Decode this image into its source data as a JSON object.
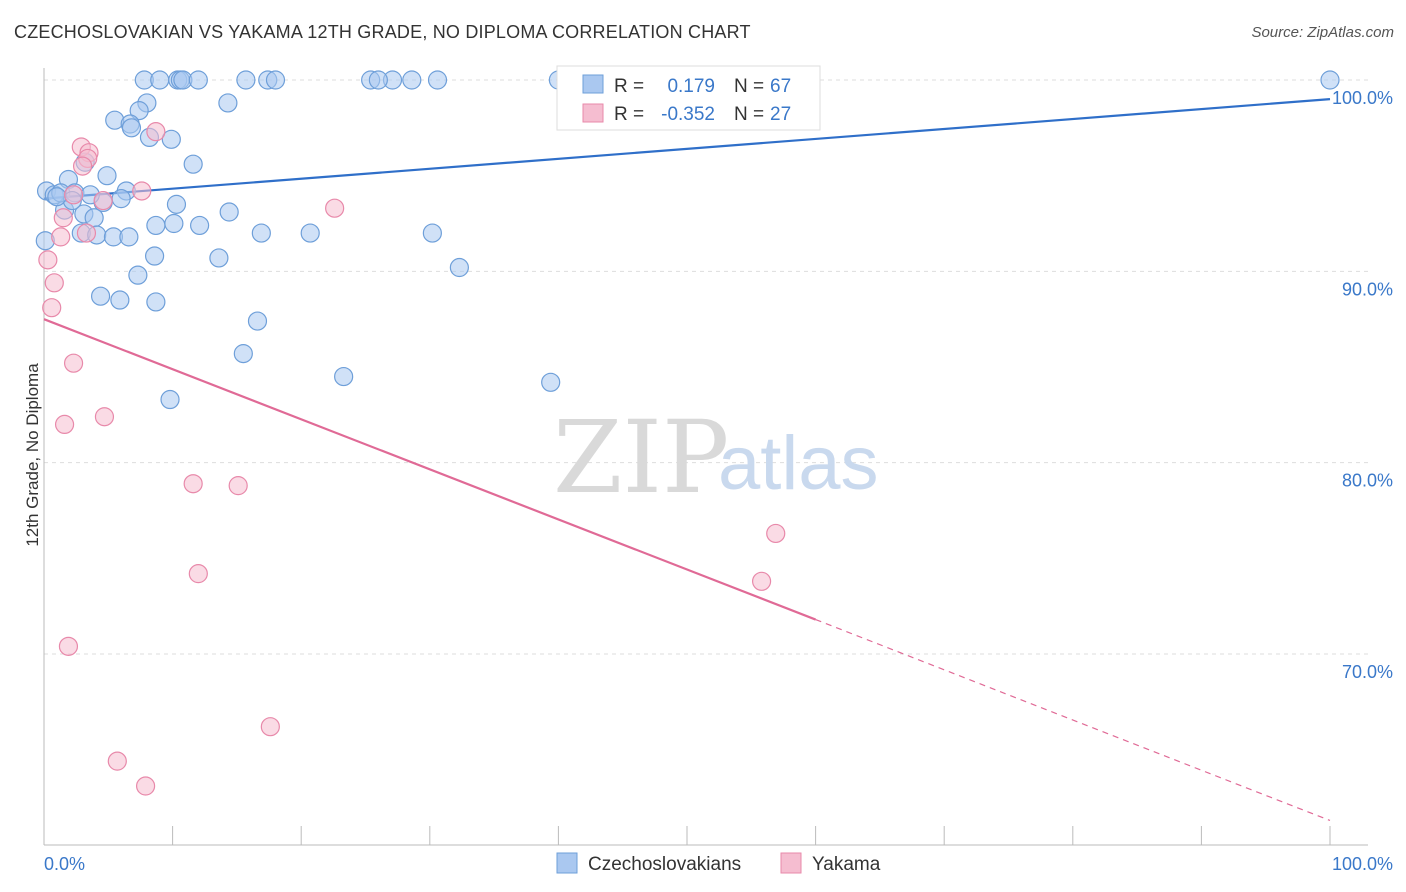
{
  "title": "CZECHOSLOVAKIAN VS YAKAMA 12TH GRADE, NO DIPLOMA CORRELATION CHART",
  "source": "Source: ZipAtlas.com",
  "watermark": {
    "zip": "ZIP",
    "atlas": "atlas"
  },
  "colors": {
    "blue_fill": "#aac8f0",
    "blue_stroke": "#6e9fd9",
    "blue_line": "#2f6fc9",
    "pink_fill": "#f5bdd0",
    "pink_stroke": "#e889aa",
    "pink_line": "#e06a96",
    "accent_text": "#3a78c9",
    "grid": "#dddddd"
  },
  "legend": {
    "rows": [
      {
        "r_label": "R =",
        "r_value": "0.179",
        "n_label": "N =",
        "n_value": "67",
        "color": "blue"
      },
      {
        "r_label": "R =",
        "r_value": "-0.352",
        "n_label": "N =",
        "n_value": "27",
        "color": "pink"
      }
    ]
  },
  "bottom_legend": [
    "Czechoslovakians",
    "Yakama"
  ],
  "chart_data": {
    "type": "scatter",
    "title": "CZECHOSLOVAKIAN VS YAKAMA 12TH GRADE, NO DIPLOMA CORRELATION CHART",
    "xlabel": "",
    "ylabel": "12th Grade, No Diploma",
    "x_tick_labels": [
      "0.0%",
      "100.0%"
    ],
    "y_tick_labels": [
      "100.0%",
      "90.0%",
      "80.0%",
      "70.0%"
    ],
    "y_ticks": [
      100,
      90,
      80,
      70
    ],
    "xlim": [
      0,
      100
    ],
    "ylim": [
      60.4,
      102
    ],
    "grid": true,
    "legend_position": "top-center",
    "series": [
      {
        "name": "Czechoslovakians",
        "color": "blue",
        "r": 0.179,
        "n": 67,
        "trend": {
          "x": [
            0,
            100
          ],
          "y": [
            93.8,
            99.0
          ]
        },
        "points": [
          [
            7.8,
            100
          ],
          [
            9.0,
            100
          ],
          [
            10.4,
            100
          ],
          [
            10.6,
            100
          ],
          [
            10.8,
            100
          ],
          [
            15.7,
            100
          ],
          [
            17.4,
            100
          ],
          [
            25.4,
            100
          ],
          [
            27.1,
            100
          ],
          [
            28.6,
            100
          ],
          [
            30.6,
            100
          ],
          [
            100,
            100
          ],
          [
            8.0,
            98.8
          ],
          [
            14.3,
            98.8
          ],
          [
            7.4,
            98.4
          ],
          [
            5.5,
            97.9
          ],
          [
            6.7,
            97.7
          ],
          [
            6.8,
            97.5
          ],
          [
            8.2,
            97.0
          ],
          [
            9.9,
            96.9
          ],
          [
            3.2,
            95.7
          ],
          [
            11.6,
            95.6
          ],
          [
            4.9,
            95.0
          ],
          [
            1.9,
            94.8
          ],
          [
            0.2,
            94.2
          ],
          [
            0.8,
            94.0
          ],
          [
            1.3,
            94.1
          ],
          [
            2.4,
            94.1
          ],
          [
            6.4,
            94.2
          ],
          [
            6.0,
            93.8
          ],
          [
            4.6,
            93.6
          ],
          [
            10.3,
            93.5
          ],
          [
            1.6,
            93.2
          ],
          [
            3.1,
            93.0
          ],
          [
            3.9,
            92.8
          ],
          [
            14.4,
            93.1
          ],
          [
            10.1,
            92.5
          ],
          [
            8.7,
            92.4
          ],
          [
            12.1,
            92.4
          ],
          [
            2.9,
            92.0
          ],
          [
            4.1,
            91.9
          ],
          [
            5.4,
            91.8
          ],
          [
            6.6,
            91.8
          ],
          [
            16.9,
            92.0
          ],
          [
            20.7,
            92.0
          ],
          [
            30.2,
            92.0
          ],
          [
            0.1,
            91.6
          ],
          [
            8.6,
            90.8
          ],
          [
            13.6,
            90.7
          ],
          [
            32.3,
            90.2
          ],
          [
            7.3,
            89.8
          ],
          [
            4.4,
            88.7
          ],
          [
            5.9,
            88.5
          ],
          [
            8.7,
            88.4
          ],
          [
            16.6,
            87.4
          ],
          [
            15.5,
            85.7
          ],
          [
            23.3,
            84.5
          ],
          [
            39.4,
            84.2
          ],
          [
            9.8,
            83.3
          ],
          [
            42.5,
            100
          ],
          [
            40.0,
            100
          ],
          [
            12.0,
            100
          ],
          [
            18.0,
            100
          ],
          [
            3.6,
            94.0
          ],
          [
            2.2,
            93.7
          ],
          [
            26.0,
            100
          ],
          [
            1.0,
            93.9
          ]
        ]
      },
      {
        "name": "Yakama",
        "color": "pink",
        "r": -0.352,
        "n": 27,
        "trend": {
          "x": [
            0,
            60
          ],
          "y": [
            87.5,
            71.8
          ],
          "dashed_to": {
            "x": 100,
            "y": 61.3
          }
        },
        "points": [
          [
            2.9,
            96.5
          ],
          [
            3.5,
            96.2
          ],
          [
            8.7,
            97.3
          ],
          [
            3.4,
            95.9
          ],
          [
            7.6,
            94.2
          ],
          [
            2.3,
            94.0
          ],
          [
            4.6,
            93.7
          ],
          [
            22.6,
            93.3
          ],
          [
            1.5,
            92.8
          ],
          [
            3.3,
            92.0
          ],
          [
            1.3,
            91.8
          ],
          [
            0.3,
            90.6
          ],
          [
            0.8,
            89.4
          ],
          [
            0.6,
            88.1
          ],
          [
            2.3,
            85.2
          ],
          [
            4.7,
            82.4
          ],
          [
            1.6,
            82.0
          ],
          [
            11.6,
            78.9
          ],
          [
            15.1,
            78.8
          ],
          [
            56.9,
            76.3
          ],
          [
            12.0,
            74.2
          ],
          [
            55.8,
            73.8
          ],
          [
            1.9,
            70.4
          ],
          [
            17.6,
            66.2
          ],
          [
            5.7,
            64.4
          ],
          [
            7.9,
            63.1
          ],
          [
            3.0,
            95.5
          ]
        ]
      }
    ]
  }
}
